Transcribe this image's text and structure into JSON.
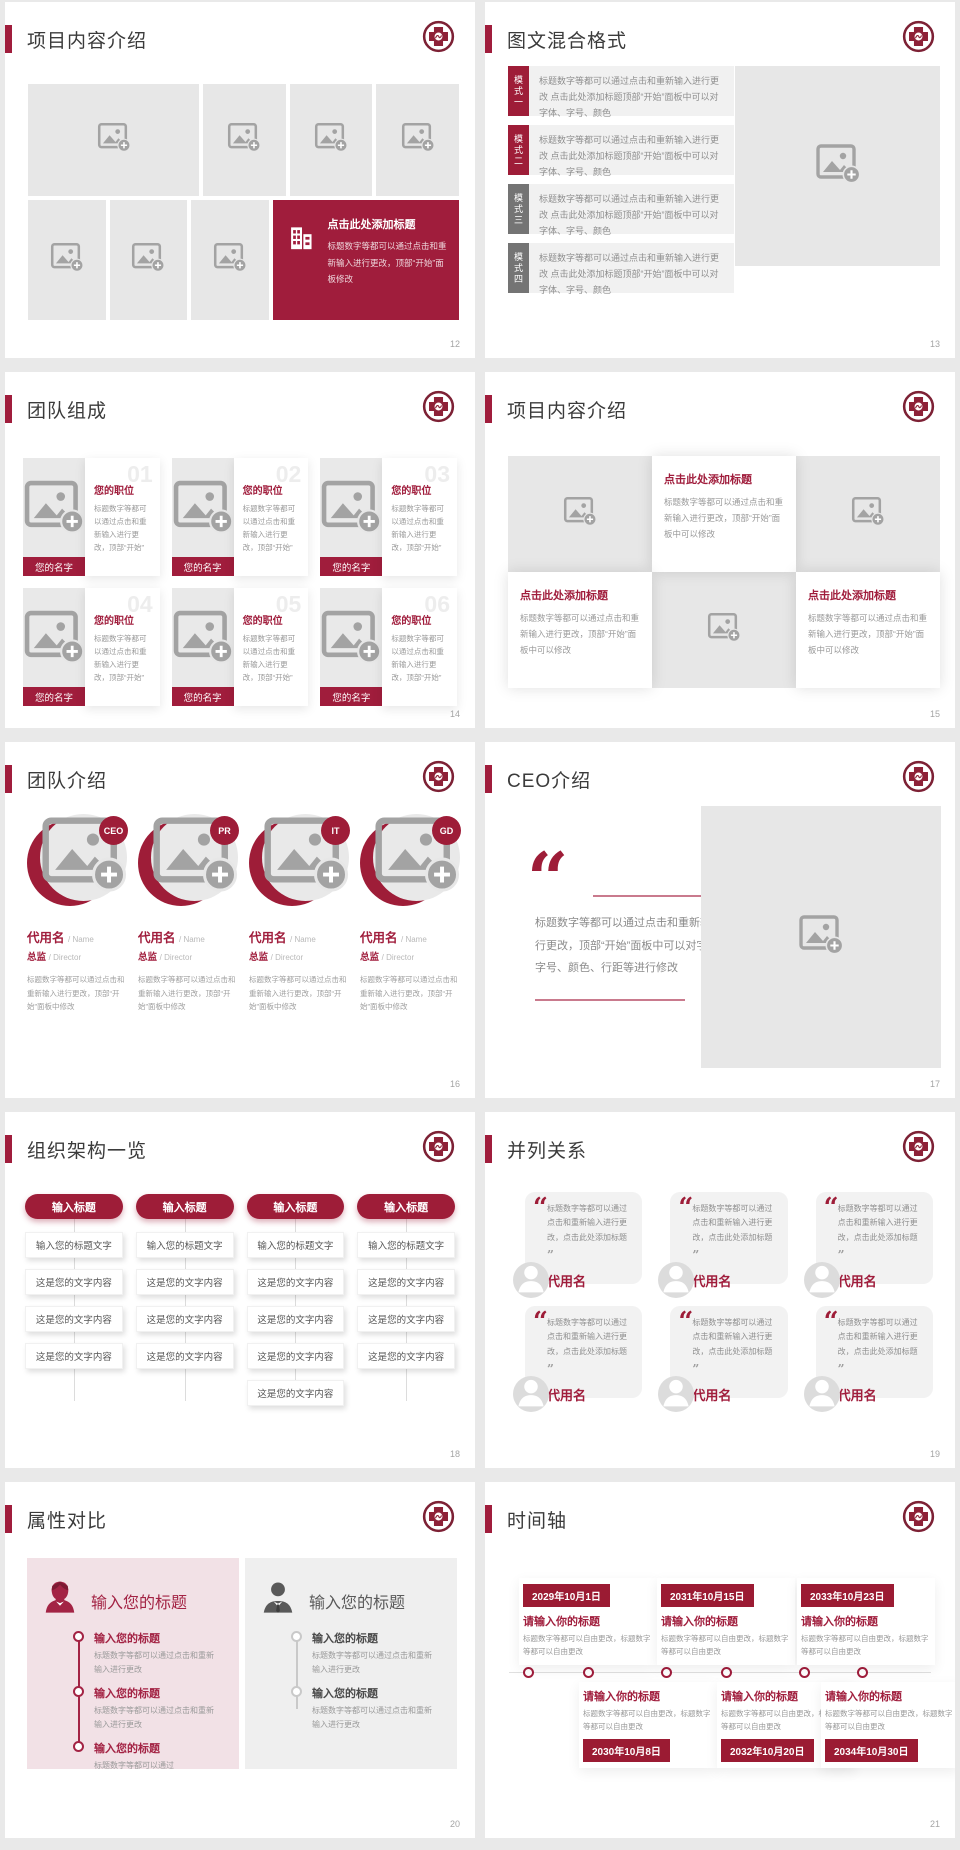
{
  "theme": {
    "primary_red": "#a01d3c",
    "deep_red": "#9b1b33",
    "page_background": "#e9e9e9",
    "placeholder_gray": "#e7e7e7",
    "pink_panel": "#f2e1e6"
  },
  "slides": {
    "s12": {
      "title": "项目内容介绍",
      "page": "12",
      "cta": {
        "heading": "点击此处添加标题",
        "body": "标题数字等都可以通过点击和重新输入进行更改，顶部“开始”面板修改"
      }
    },
    "s13": {
      "title": "图文混合格式",
      "page": "13",
      "mode_body": "标题数字等都可以通过点击和重新输入进行更改 点击此处添加标题顶部“开始”面板中可以对字体、字号、颜色",
      "modes": [
        "模式一",
        "模式二",
        "模式三",
        "模式四"
      ]
    },
    "s14": {
      "title": "团队组成",
      "page": "14",
      "name_label": "您的名字",
      "role_label": "您的职位",
      "body": "标题数字等都可以通过点击和重新输入进行更改，顶部“开始”",
      "members": [
        "01",
        "02",
        "03",
        "04",
        "05",
        "06"
      ]
    },
    "s15": {
      "title": "项目内容介绍",
      "page": "15",
      "heading": "点击此处添加标题",
      "body": "标题数字等都可以通过点击和重新输入进行更改，顶部“开始”面板中可以修改"
    },
    "s16": {
      "title": "团队介绍",
      "page": "16",
      "name": "代用名",
      "name_en": "/ Name",
      "role": "总监",
      "role_en": "/ Director",
      "body": "标题数字等都可以通过点击和重新输入进行更改，顶部“开始”面板中修改",
      "badges": [
        "CEO",
        "PR",
        "IT",
        "GD"
      ]
    },
    "s17": {
      "title": "CEO介绍",
      "page": "17",
      "quote_body": "标题数字等都可以通过点击和重新输入进行更改，顶部“开始”面板中可以对字体、字号、颜色、行距等进行修改"
    },
    "s18": {
      "title": "组织架构一览",
      "page": "18",
      "pill_label": "输入标题",
      "sub_label": "输入您的标题文字",
      "item_label": "这是您的文字内容"
    },
    "s19": {
      "title": "并列关系",
      "page": "19",
      "card_body": "标题数字等都可以通过点击和重新输入进行更改，点击此处添加标题",
      "card_name": "代用名"
    },
    "s20": {
      "title": "属性对比",
      "page": "20",
      "panel_heading": "输入您的标题",
      "item_title": "输入您的标题",
      "item_body": "标题数字等都可以通过点击和重新输入进行更改",
      "item_body_short": "标题数字等都可以通过"
    },
    "s21": {
      "title": "时间轴",
      "page": "21",
      "item_title": "请输入你的标题",
      "item_body": "标题数字等都可以自由更改，标题数字等都可以自由更改",
      "top_dates": [
        "2029年10月1日",
        "2031年10月15日",
        "2033年10月23日"
      ],
      "bottom_dates": [
        "2030年10月8日",
        "2032年10月20日",
        "2034年10月30日"
      ]
    }
  }
}
